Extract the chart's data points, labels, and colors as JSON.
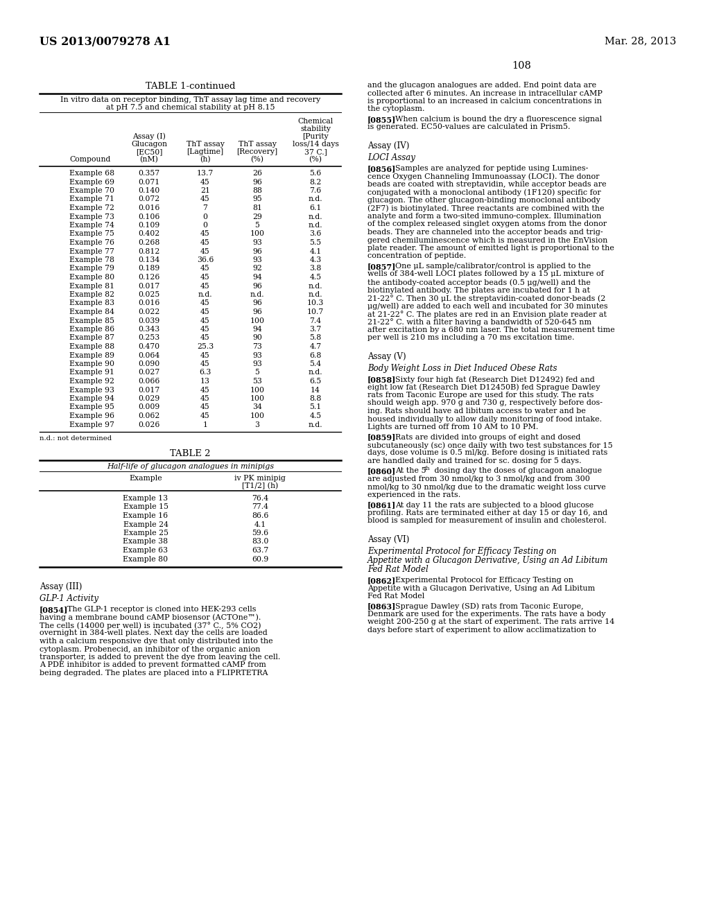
{
  "bg_color": "#ffffff",
  "header_left": "US 2013/0079278 A1",
  "header_right": "Mar. 28, 2013",
  "page_number": "108",
  "table1_title": "TABLE 1-continued",
  "table1_subtitle_line1": "In vitro data on receptor binding, ThT assay lag time and recovery",
  "table1_subtitle_line2": "at pH 7.5 and chemical stability at pH 8.15",
  "table1_data": [
    [
      "Example 68",
      "0.357",
      "13.7",
      "26",
      "5.6"
    ],
    [
      "Example 69",
      "0.071",
      "45",
      "96",
      "8.2"
    ],
    [
      "Example 70",
      "0.140",
      "21",
      "88",
      "7.6"
    ],
    [
      "Example 71",
      "0.072",
      "45",
      "95",
      "n.d."
    ],
    [
      "Example 72",
      "0.016",
      "7",
      "81",
      "6.1"
    ],
    [
      "Example 73",
      "0.106",
      "0",
      "29",
      "n.d."
    ],
    [
      "Example 74",
      "0.109",
      "0",
      "5",
      "n.d."
    ],
    [
      "Example 75",
      "0.402",
      "45",
      "100",
      "3.6"
    ],
    [
      "Example 76",
      "0.268",
      "45",
      "93",
      "5.5"
    ],
    [
      "Example 77",
      "0.812",
      "45",
      "96",
      "4.1"
    ],
    [
      "Example 78",
      "0.134",
      "36.6",
      "93",
      "4.3"
    ],
    [
      "Example 79",
      "0.189",
      "45",
      "92",
      "3.8"
    ],
    [
      "Example 80",
      "0.126",
      "45",
      "94",
      "4.5"
    ],
    [
      "Example 81",
      "0.017",
      "45",
      "96",
      "n.d."
    ],
    [
      "Example 82",
      "0.025",
      "n.d.",
      "n.d.",
      "n.d."
    ],
    [
      "Example 83",
      "0.016",
      "45",
      "96",
      "10.3"
    ],
    [
      "Example 84",
      "0.022",
      "45",
      "96",
      "10.7"
    ],
    [
      "Example 85",
      "0.039",
      "45",
      "100",
      "7.4"
    ],
    [
      "Example 86",
      "0.343",
      "45",
      "94",
      "3.7"
    ],
    [
      "Example 87",
      "0.253",
      "45",
      "90",
      "5.8"
    ],
    [
      "Example 88",
      "0.470",
      "25.3",
      "73",
      "4.7"
    ],
    [
      "Example 89",
      "0.064",
      "45",
      "93",
      "6.8"
    ],
    [
      "Example 90",
      "0.090",
      "45",
      "93",
      "5.4"
    ],
    [
      "Example 91",
      "0.027",
      "6.3",
      "5",
      "n.d."
    ],
    [
      "Example 92",
      "0.066",
      "13",
      "53",
      "6.5"
    ],
    [
      "Example 93",
      "0.017",
      "45",
      "100",
      "14"
    ],
    [
      "Example 94",
      "0.029",
      "45",
      "100",
      "8.8"
    ],
    [
      "Example 95",
      "0.009",
      "45",
      "34",
      "5.1"
    ],
    [
      "Example 96",
      "0.062",
      "45",
      "100",
      "4.5"
    ],
    [
      "Example 97",
      "0.026",
      "1",
      "3",
      "n.d."
    ]
  ],
  "table1_footnote": "n.d.: not determined",
  "table2_title": "TABLE 2",
  "table2_subtitle": "Half-life of glucagon analogues in minipigs",
  "table2_data": [
    [
      "Example 13",
      "76.4"
    ],
    [
      "Example 15",
      "77.4"
    ],
    [
      "Example 16",
      "86.6"
    ],
    [
      "Example 24",
      "4.1"
    ],
    [
      "Example 25",
      "59.6"
    ],
    [
      "Example 38",
      "83.0"
    ],
    [
      "Example 63",
      "63.7"
    ],
    [
      "Example 80",
      "60.9"
    ]
  ],
  "right_body_intro": [
    "and the glucagon analogues are added. End point data are",
    "collected after 6 minutes. An increase in intracellular cAMP",
    "is proportional to an increased in calcium concentrations in",
    "the cytoplasm."
  ],
  "para_0855": [
    "When calcium is bound the dry a fluorescence signal",
    "is generated. EC50-values are calculated in Prism5."
  ],
  "para_0856": [
    "Samples are analyzed for peptide using Lumines-",
    "cence Oxygen Channeling Immunoassay (LOCI). The donor",
    "beads are coated with streptavidin, while acceptor beads are",
    "conjugated with a monoclonal antibody (1F120) specific for",
    "glucagon. The other glucagon-binding monoclonal antibody",
    "(2F7) is biotinylated. Three reactants are combined with the",
    "analyte and form a two-sited immuno-complex. Illumination",
    "of the complex released singlet oxygen atoms from the donor",
    "beads. They are channeled into the acceptor beads and trig-",
    "gered chemiluminescence which is measured in the EnVision",
    "plate reader. The amount of emitted light is proportional to the",
    "concentration of peptide."
  ],
  "para_0857": [
    "One μL sample/calibrator/control is applied to the",
    "wells of 384-well LOCI plates followed by a 15 μL mixture of",
    "the antibody-coated acceptor beads (0.5 μg/well) and the",
    "biotinylated antibody. The plates are incubated for 1 h at",
    "21-22° C. Then 30 μL the streptavidin-coated donor-beads (2",
    "μg/well) are added to each well and incubated for 30 minutes",
    "at 21-22° C. The plates are red in an Envision plate reader at",
    "21-22° C. with a filter having a bandwidth of 520-645 nm",
    "after excitation by a 680 nm laser. The total measurement time",
    "per well is 210 ms including a 70 ms excitation time."
  ],
  "para_0858": [
    "Sixty four high fat (Research Diet D12492) fed and",
    "eight low fat (Research Diet D12450B) fed Sprague Dawley",
    "rats from Taconic Europe are used for this study. The rats",
    "should weigh app. 970 g and 730 g, respectively before dos-",
    "ing. Rats should have ad libitum access to water and be",
    "housed individually to allow daily monitoring of food intake.",
    "Lights are turned off from 10 AM to 10 PM."
  ],
  "para_0859": [
    "Rats are divided into groups of eight and dosed",
    "subcutaneously (sc) once daily with two test substances for 15",
    "days, dose volume is 0.5 ml/kg. Before dosing is initiated rats",
    "are handled daily and trained for sc. dosing for 5 days."
  ],
  "para_0860": [
    "At the 5th dosing day the doses of glucagon analogue",
    "are adjusted from 30 nmol/kg to 3 nmol/kg and from 300",
    "nmol/kg to 30 nmol/kg due to the dramatic weight loss curve",
    "experienced in the rats."
  ],
  "para_0861": [
    "At day 11 the rats are subjected to a blood glucose",
    "profiling. Rats are terminated either at day 15 or day 16, and",
    "blood is sampled for measurement of insulin and cholesterol."
  ],
  "heading_assay6_line2": "Experimental Protocol for Efficacy Testing on",
  "heading_assay6_line3": "Appetite with a Glucagon Derivative, Using an Ad Libitum",
  "heading_assay6_line4": "Fed Rat Model",
  "para_0862": [
    "Experimental Protocol for Efficacy Testing on",
    "Appetite with a Glucagon Derivative, Using an Ad Libitum",
    "Fed Rat Model"
  ],
  "para_0863": [
    "Sprague Dawley (SD) rats from Taconic Europe,",
    "Denmark are used for the experiments. The rats have a body",
    "weight 200-250 g at the start of experiment. The rats arrive 14",
    "days before start of experiment to allow acclimatization to"
  ],
  "para_0854": [
    "The GLP-1 receptor is cloned into HEK-293 cells",
    "having a membrane bound cAMP biosensor (ACTOne™).",
    "The cells (14000 per well) is incubated (37° C., 5% CO2)",
    "overnight in 384-well plates. Next day the cells are loaded",
    "with a calcium responsive dye that only distributed into the",
    "cytoplasm. Probenecid, an inhibitor of the organic anion",
    "transporter, is added to prevent the dye from leaving the cell.",
    "A PDE inhibitor is added to prevent formatted cAMP from",
    "being degraded. The plates are placed into a FLIPRTETRA"
  ]
}
